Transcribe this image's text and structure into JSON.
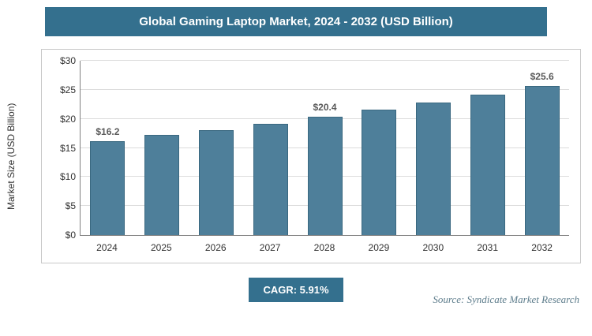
{
  "title_bar": {
    "title": "Global Gaming Laptop Market, 2024 - 2032 (USD Billion)"
  },
  "footer": {
    "cagr": "CAGR: 5.91%",
    "source": "Source: Syndicate Market Research"
  },
  "colors": {
    "accent": "#34708e",
    "bar": "#4e7f9a",
    "bar_border": "#3a6880",
    "gridline": "#dcdcdc",
    "axis": "#808080",
    "value_label": "#595959",
    "source_text": "#5e7d8c"
  },
  "chart_data": {
    "type": "bar",
    "title": "Global Gaming Laptop Market, 2024 - 2032 (USD Billion)",
    "xlabel": "",
    "ylabel": "Market Size (USD Billion)",
    "categories": [
      "2024",
      "2025",
      "2026",
      "2027",
      "2028",
      "2029",
      "2030",
      "2031",
      "2032"
    ],
    "values": [
      16.2,
      17.2,
      18.1,
      19.2,
      20.4,
      21.6,
      22.8,
      24.2,
      25.6
    ],
    "point_labels": [
      "$16.2",
      "",
      "",
      "",
      "$20.4",
      "",
      "",
      "",
      "$25.6"
    ],
    "ylim": [
      0,
      30
    ],
    "yticks": [
      {
        "label": "$0",
        "value": 0
      },
      {
        "label": "$5",
        "value": 5
      },
      {
        "label": "$10",
        "value": 10
      },
      {
        "label": "$15",
        "value": 15
      },
      {
        "label": "$20",
        "value": 20
      },
      {
        "label": "$25",
        "value": 25
      },
      {
        "label": "$30",
        "value": 30
      }
    ],
    "grid": true,
    "legend": false,
    "annotations": [
      "CAGR: 5.91%"
    ]
  }
}
